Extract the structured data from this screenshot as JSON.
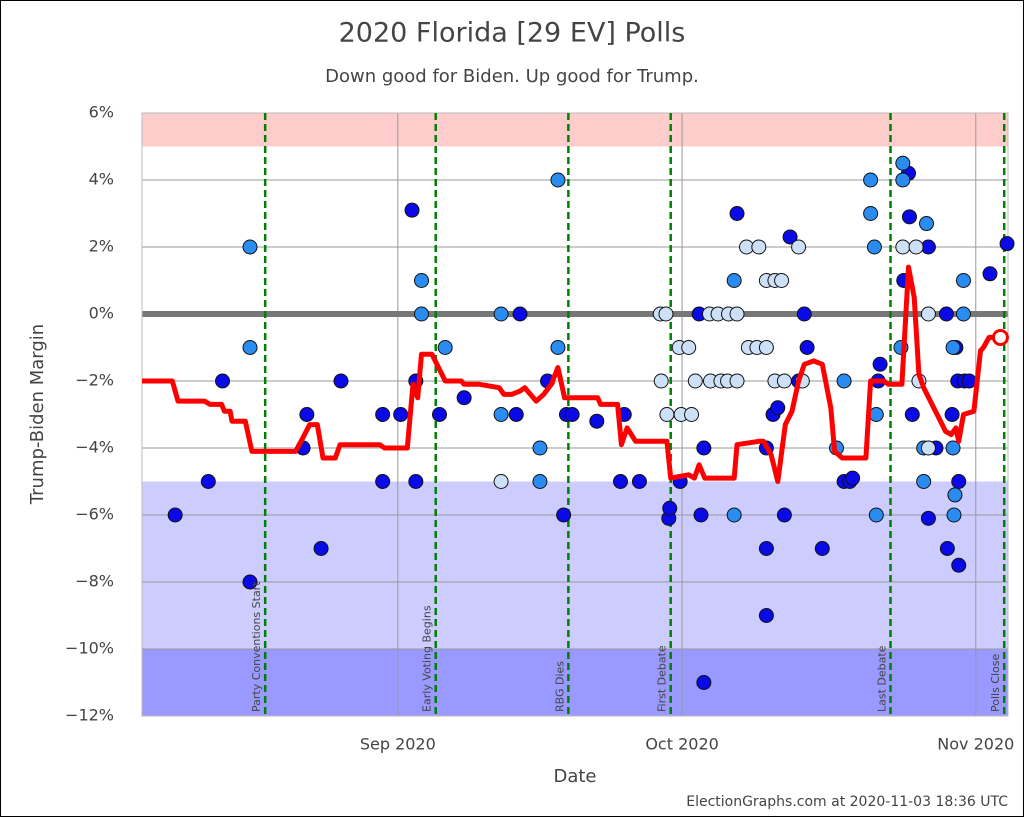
{
  "chart_data": {
    "type": "scatter",
    "title": "2020 Florida [29 EV] Polls",
    "subtitle": "Down good for Biden. Up good for Trump.",
    "x_label": "Date",
    "y_label": "Trump-Biden Margin",
    "footer": "ElectionGraphs.com at 2020-11-03 18:36 UTC",
    "xlim": [
      218,
      309.4
    ],
    "xticks": [
      {
        "value": 245,
        "label": "Sep 2020"
      },
      {
        "value": 275,
        "label": "Oct 2020"
      },
      {
        "value": 306,
        "label": "Nov 2020"
      }
    ],
    "ylim": [
      -12,
      6
    ],
    "yticks": [
      {
        "value": 6,
        "label": "6%"
      },
      {
        "value": 4,
        "label": "4%"
      },
      {
        "value": 2,
        "label": "2%"
      },
      {
        "value": 0,
        "label": "0%"
      },
      {
        "value": -2,
        "label": "−2%"
      },
      {
        "value": -4,
        "label": "−4%"
      },
      {
        "value": -6,
        "label": "−6%"
      },
      {
        "value": -8,
        "label": "−8%"
      },
      {
        "value": -10,
        "label": "−10%"
      },
      {
        "value": -12,
        "label": "−12%"
      }
    ],
    "grid": true,
    "zero_line_color": "#777777",
    "bands": [
      {
        "from": 5,
        "to": 6,
        "color": "#ffcccc"
      },
      {
        "from": -10,
        "to": -5,
        "color": "#ccccff"
      },
      {
        "from": -12,
        "to": -10,
        "color": "#9999ff"
      }
    ],
    "events": [
      {
        "x": 231,
        "label": "Party Conventions Start"
      },
      {
        "x": 249,
        "label": "Early Voting Begins"
      },
      {
        "x": 263,
        "label": "RBG Dies"
      },
      {
        "x": 273.8,
        "label": "First Debate"
      },
      {
        "x": 297,
        "label": "Last Debate"
      },
      {
        "x": 309,
        "label": "Polls Close"
      }
    ],
    "event_color": "#008000",
    "series": [
      {
        "color": "#0a0ae6",
        "x": [
          221.5,
          225,
          226.5,
          229.4,
          235,
          235.4,
          236.9,
          239,
          243.4,
          243.4,
          245.3,
          246.5,
          246.9,
          246.9,
          249.4,
          252,
          257.5,
          257.9,
          260.8,
          262.5,
          262.8,
          263.4,
          266,
          268.5,
          268.9,
          270.5,
          273.6,
          273.7,
          274.8,
          276.8,
          277,
          277.3,
          277.3,
          280.8,
          283.9,
          283.9,
          283.9,
          284.6,
          285.1,
          285.8,
          286.4,
          287.3,
          287.9,
          288.2,
          289.8,
          292.1,
          292.7,
          293,
          295.7,
          295.9,
          298.4,
          298.9,
          299,
          299.3,
          301,
          301,
          301.8,
          302.9,
          303,
          303.5,
          303.9,
          304.1,
          304.2,
          304.2,
          304.8,
          305.3,
          309.3,
          307.5
        ],
        "values": [
          -6,
          -5,
          -2,
          -8,
          -4,
          -3,
          -7,
          -2,
          -3,
          -5,
          -3,
          3.1,
          -2,
          -5,
          -3,
          -2.5,
          -3,
          0,
          -2,
          -6,
          -3,
          -3,
          -3.2,
          -5,
          -3,
          -5,
          -6.1,
          -5.8,
          -5,
          0,
          -6,
          -4,
          -11,
          3,
          -4,
          -7,
          -9,
          -3,
          -2.8,
          -6,
          2.3,
          -2,
          0,
          -1,
          -7,
          -5,
          -5,
          -4.9,
          -2,
          -1.5,
          1,
          4.2,
          2.9,
          -3,
          2,
          -6.1,
          -4,
          0,
          -7,
          -3,
          -1,
          -2,
          -5,
          -7.5,
          -2,
          -2,
          2.1,
          1.2
        ]
      },
      {
        "color": "#2a8cf0",
        "x": [
          229.4,
          229.4,
          247.5,
          247.5,
          250,
          255.9,
          255.9,
          260,
          260,
          261.9,
          261.9,
          280.5,
          280.5,
          292.1,
          291.3,
          294.9,
          294.9,
          295.3,
          295.5,
          295.5,
          298.3,
          298.3,
          298.1,
          300.8,
          300.5,
          300.5,
          303.6,
          303.7,
          303.8,
          304.7,
          304.7,
          303.6
        ],
        "values": [
          2,
          -1,
          1,
          0,
          -1,
          0,
          -3,
          -4,
          -5,
          4,
          -1,
          1,
          -6,
          -2,
          -4,
          4,
          3,
          2,
          -3,
          -6,
          4.5,
          4,
          -1,
          2.7,
          -4,
          -5,
          -4,
          -6,
          -5.4,
          0,
          1,
          -1
        ]
      },
      {
        "color": "#cce0f8",
        "x": [
          255.9,
          272.7,
          273.3,
          272.8,
          273.4,
          274.7,
          275.7,
          274.9,
          276,
          276.4,
          277.9,
          278,
          278.8,
          279.1,
          279.9,
          279.8,
          280.8,
          280.8,
          281.8,
          283.1,
          282,
          282.9,
          283.9,
          283.9,
          284.8,
          285.5,
          284.8,
          285.8,
          287.3,
          287.7,
          298.3,
          299.7,
          301,
          300,
          301
        ],
        "values": [
          -5,
          0,
          0,
          -2,
          -3,
          -1,
          -1,
          -3,
          -3,
          -2,
          0,
          -2,
          0,
          -2,
          0,
          -2,
          0,
          -2,
          2,
          2,
          -1,
          -1,
          -1,
          1,
          1,
          1,
          -2,
          -2,
          2,
          -2,
          2,
          2,
          0,
          -2,
          -4
        ]
      }
    ],
    "trend": {
      "color": "#ff0000",
      "x": [
        218,
        221.2,
        221.8,
        224.6,
        225.2,
        226.4,
        226.7,
        227.3,
        227.5,
        228.9,
        229.6,
        234.2,
        234.6,
        235.7,
        236.5,
        237.1,
        238.4,
        238.9,
        243.1,
        243.6,
        246,
        246.6,
        247.1,
        247.5,
        248.6,
        250,
        251.7,
        252,
        253.6,
        255.7,
        256.2,
        257,
        257.9,
        258.4,
        259.6,
        260.4,
        261.2,
        261.9,
        262.6,
        266.1,
        266.4,
        268.2,
        268.6,
        269.2,
        270.1,
        273.4,
        273.8,
        275.7,
        276.3,
        276.8,
        277.4,
        280.5,
        280.8,
        283.1,
        283.6,
        284.4,
        285.1,
        285.9,
        286.6,
        287.3,
        287.9,
        288.9,
        289.8,
        290.7,
        291.1,
        291.9,
        294.4,
        294.9,
        296.3,
        296.8,
        298.2,
        298.9,
        299.5,
        300,
        300.5,
        302.8,
        303.4,
        303.9,
        304.2,
        304.7,
        305.8,
        306.5,
        306.8,
        307.4,
        308.6
      ],
      "values": [
        -2,
        -2,
        -2.6,
        -2.6,
        -2.7,
        -2.7,
        -2.9,
        -2.9,
        -3.2,
        -3.2,
        -4.1,
        -4.1,
        -3.9,
        -3.3,
        -3.3,
        -4.3,
        -4.3,
        -3.9,
        -3.9,
        -4,
        -4,
        -2.1,
        -2.5,
        -1.2,
        -1.2,
        -2,
        -2,
        -2.1,
        -2.1,
        -2.2,
        -2.4,
        -2.4,
        -2.3,
        -2.2,
        -2.6,
        -2.4,
        -2.1,
        -1.6,
        -2.5,
        -2.5,
        -2.7,
        -2.7,
        -3.9,
        -3.4,
        -3.8,
        -3.8,
        -4.9,
        -4.8,
        -4.9,
        -4.5,
        -4.9,
        -4.9,
        -3.9,
        -3.8,
        -3.8,
        -4.2,
        -5,
        -3.3,
        -2.9,
        -2,
        -1.5,
        -1.4,
        -1.5,
        -2.8,
        -4.1,
        -4.3,
        -4.3,
        -2,
        -2,
        -2.1,
        -2.1,
        1.4,
        0.5,
        -1.8,
        -2.2,
        -3.5,
        -3.6,
        -3.4,
        -3.8,
        -3,
        -2.9,
        -1.1,
        -1,
        -0.7,
        -0.7
      ]
    }
  }
}
